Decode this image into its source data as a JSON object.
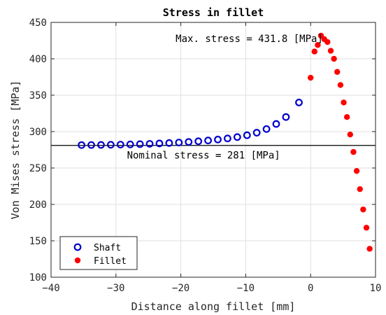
{
  "chart_data": {
    "type": "scatter",
    "title": "Stress in fillet",
    "xlabel": "Distance along fillet [mm]",
    "ylabel": "Von Mises stress [MPa]",
    "xlim": [
      -40,
      10
    ],
    "ylim": [
      100,
      450
    ],
    "xticks": [
      -40,
      -30,
      -20,
      -10,
      0,
      10
    ],
    "yticks": [
      100,
      150,
      200,
      250,
      300,
      350,
      400,
      450
    ],
    "grid": true,
    "legend_position": "bottom-left",
    "reference_line": {
      "y": 281,
      "color": "#000000"
    },
    "annotations": [
      {
        "text": "Max. stress = 431.8 [MPa]",
        "x": -20.8,
        "y": 428
      },
      {
        "text": "Nominal stress = 281 [MPa]",
        "x": -28.3,
        "y": 268
      }
    ],
    "series": [
      {
        "name": "Shaft",
        "marker": "open-circle",
        "color": "#0000cc",
        "x": [
          -35.3,
          -33.8,
          -32.3,
          -30.8,
          -29.3,
          -27.8,
          -26.3,
          -24.8,
          -23.3,
          -21.8,
          -20.3,
          -18.8,
          -17.3,
          -15.8,
          -14.3,
          -12.8,
          -11.3,
          -9.8,
          -8.3,
          -6.8,
          -5.3,
          -3.8,
          -1.8
        ],
        "y": [
          281.5,
          281.6,
          281.7,
          281.9,
          282.1,
          282.4,
          282.8,
          283.2,
          283.7,
          284.3,
          285.0,
          285.8,
          286.7,
          287.8,
          289.1,
          290.6,
          292.5,
          295.0,
          298.5,
          303.5,
          310.5,
          320.0,
          340.0
        ]
      },
      {
        "name": "Fillet",
        "marker": "filled-circle",
        "color": "#ff0000",
        "x": [
          0.0,
          0.6,
          1.1,
          1.6,
          2.1,
          2.6,
          3.1,
          3.6,
          4.1,
          4.6,
          5.1,
          5.6,
          6.1,
          6.6,
          7.1,
          7.6,
          8.1,
          8.6,
          9.1
        ],
        "y": [
          374.0,
          410.0,
          419.0,
          431.8,
          427.0,
          423.0,
          411.0,
          400.0,
          382.0,
          364.0,
          340.0,
          320.0,
          296.0,
          272.0,
          246.0,
          221.0,
          193.0,
          168.0,
          139.0
        ]
      }
    ]
  }
}
